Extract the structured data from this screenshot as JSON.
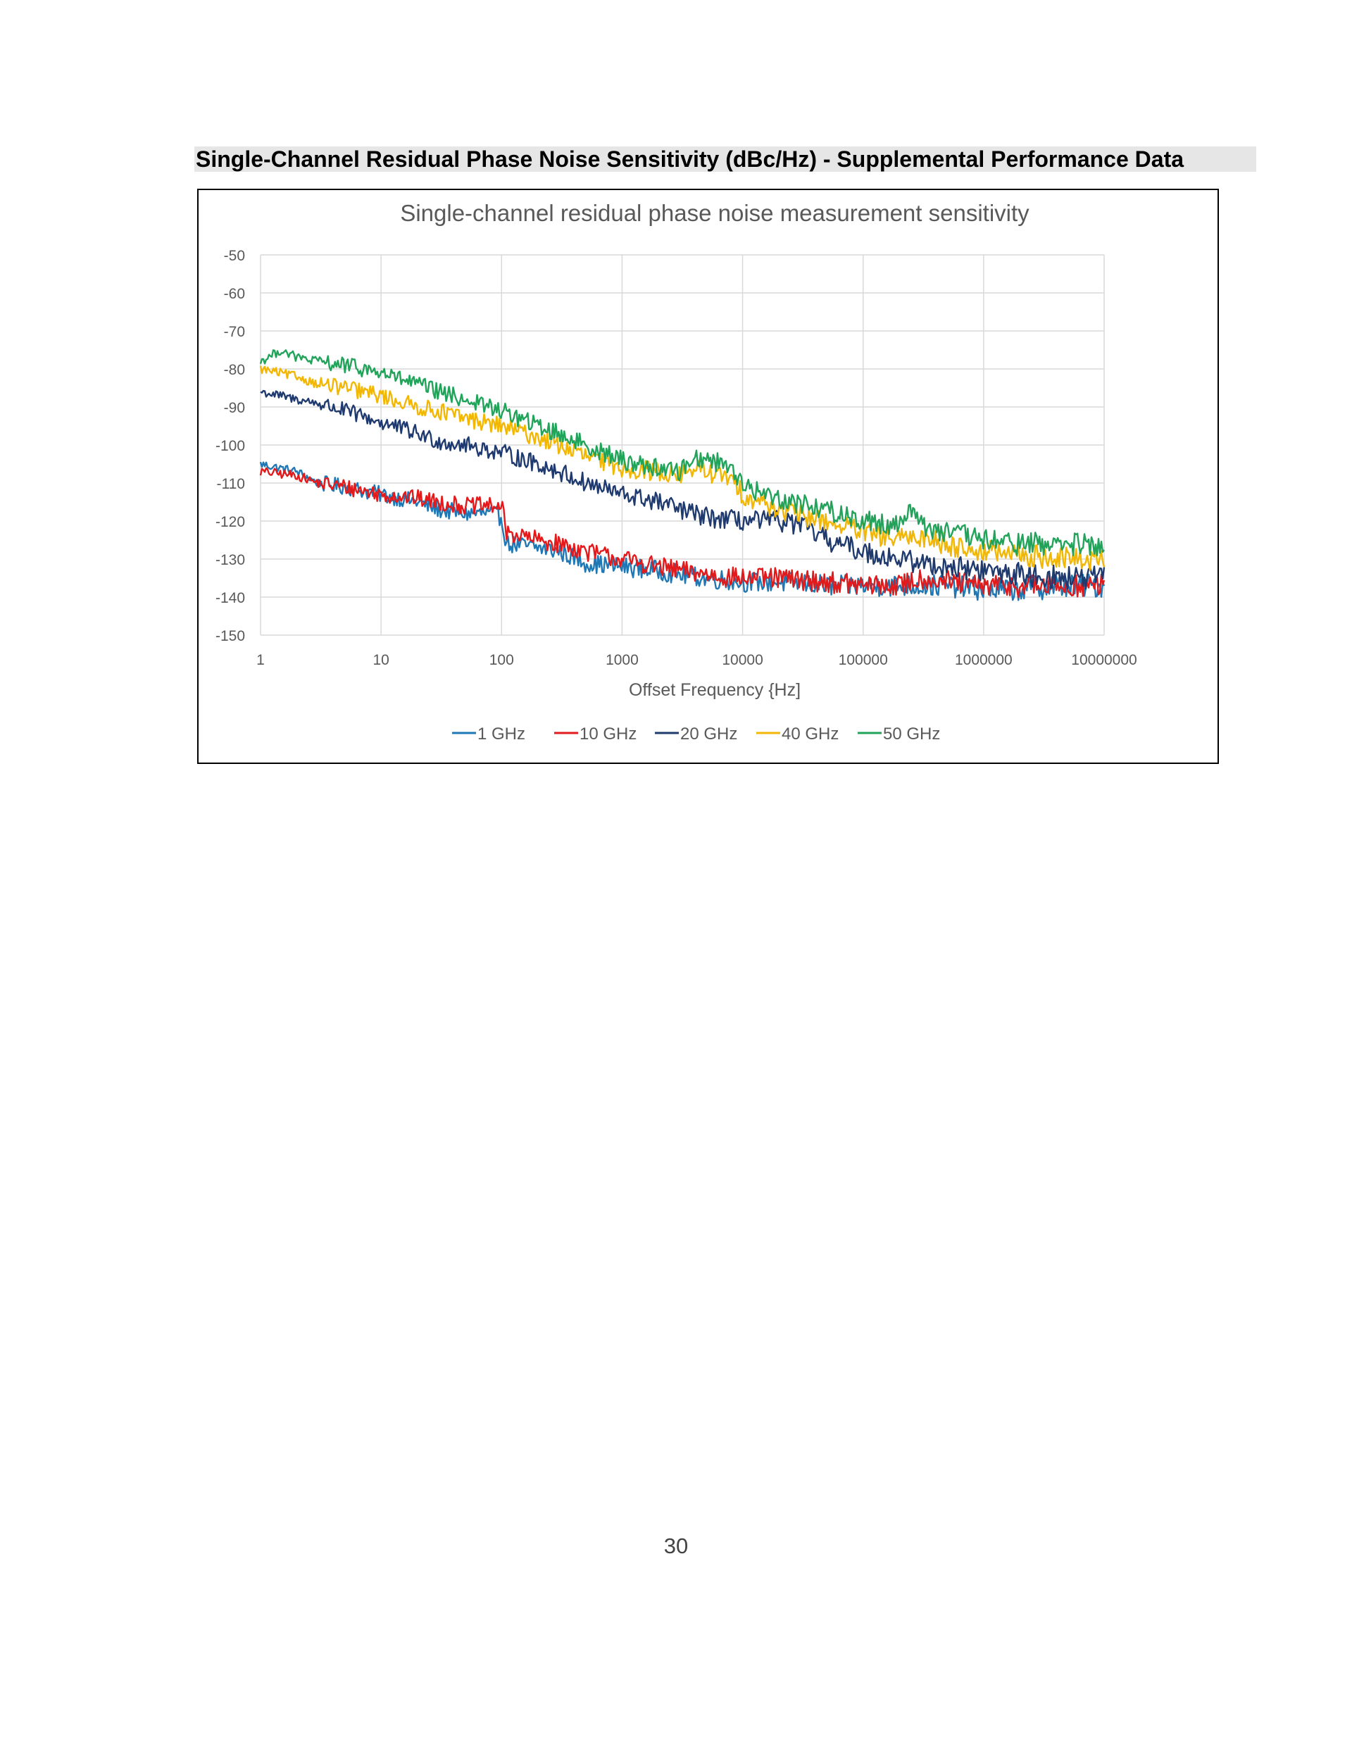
{
  "heading": "Single-Channel Residual Phase Noise Sensitivity (dBc/Hz) - Supplemental Performance Data",
  "page_number": "30",
  "chart_data": {
    "type": "line",
    "title": "Single-channel residual phase noise measurement sensitivity",
    "xlabel": "Offset Frequency {Hz]",
    "ylabel": "",
    "x_scale": "log",
    "xlim": [
      1,
      10000000
    ],
    "ylim": [
      -150,
      -50
    ],
    "x_ticks": [
      "1",
      "10",
      "100",
      "1000",
      "10000",
      "100000",
      "1000000",
      "10000000"
    ],
    "y_ticks": [
      "-50",
      "-60",
      "-70",
      "-80",
      "-90",
      "-100",
      "-110",
      "-120",
      "-130",
      "-140",
      "-150"
    ],
    "grid": true,
    "legend_position": "bottom",
    "series": [
      {
        "name": "1 GHz",
        "color": "#1f77b4",
        "x": [
          1,
          2,
          3,
          5,
          10,
          20,
          30,
          50,
          80,
          100,
          110,
          200,
          300,
          500,
          1000,
          2000,
          3000,
          5000,
          10000,
          20000,
          50000,
          100000,
          200000,
          500000,
          1000000,
          2000000,
          5000000,
          10000000
        ],
        "y": [
          -105,
          -107,
          -110,
          -111,
          -113,
          -115,
          -117,
          -118,
          -118,
          -119,
          -126,
          -127,
          -128,
          -131,
          -132,
          -133,
          -134,
          -135,
          -136,
          -136,
          -137,
          -137,
          -137,
          -137,
          -138,
          -138,
          -137,
          -137
        ]
      },
      {
        "name": "10 GHz",
        "color": "#e31a1c",
        "x": [
          1,
          2,
          3,
          5,
          10,
          20,
          30,
          50,
          80,
          100,
          110,
          200,
          300,
          500,
          1000,
          2000,
          3000,
          5000,
          10000,
          20000,
          50000,
          100000,
          200000,
          300000,
          500000,
          1000000,
          2000000,
          5000000,
          10000000
        ],
        "y": [
          -107,
          -108,
          -110,
          -111,
          -113,
          -114,
          -115,
          -116,
          -116,
          -116,
          -123,
          -125,
          -126,
          -128,
          -130,
          -132,
          -133,
          -134,
          -135,
          -135,
          -136,
          -137,
          -137,
          -135,
          -136,
          -137,
          -137,
          -137,
          -137
        ]
      },
      {
        "name": "20 GHz",
        "color": "#1f3a6e",
        "x": [
          1,
          2,
          3,
          5,
          10,
          20,
          30,
          50,
          100,
          200,
          300,
          500,
          1000,
          2000,
          3000,
          5000,
          10000,
          20000,
          30000,
          50000,
          100000,
          200000,
          300000,
          500000,
          1000000,
          2000000,
          5000000,
          10000000
        ],
        "y": [
          -86,
          -88,
          -89,
          -91,
          -94,
          -97,
          -99,
          -100,
          -102,
          -105,
          -107,
          -110,
          -113,
          -115,
          -117,
          -119,
          -120,
          -120,
          -121,
          -125,
          -128,
          -130,
          -131,
          -132,
          -133,
          -134,
          -135,
          -135
        ]
      },
      {
        "name": "40 GHz",
        "color": "#f2b705",
        "x": [
          1,
          2,
          3,
          5,
          10,
          20,
          30,
          50,
          100,
          200,
          300,
          500,
          1000,
          2000,
          3000,
          4000,
          5000,
          8000,
          10000,
          20000,
          50000,
          100000,
          200000,
          300000,
          500000,
          1000000,
          2000000,
          5000000,
          10000000
        ],
        "y": [
          -80,
          -82,
          -84,
          -85,
          -87,
          -90,
          -91,
          -93,
          -95,
          -98,
          -100,
          -103,
          -106,
          -107,
          -108,
          -106,
          -107,
          -109,
          -113,
          -117,
          -120,
          -123,
          -125,
          -124,
          -126,
          -128,
          -129,
          -130,
          -130
        ]
      },
      {
        "name": "50 GHz",
        "color": "#21a35a",
        "x": [
          1,
          1.5,
          2,
          3,
          5,
          10,
          20,
          30,
          50,
          100,
          200,
          300,
          500,
          1000,
          2000,
          3000,
          4000,
          5000,
          8000,
          10000,
          20000,
          50000,
          100000,
          200000,
          250000,
          300000,
          500000,
          1000000,
          2000000,
          5000000,
          10000000
        ],
        "y": [
          -78,
          -75,
          -77,
          -78,
          -79,
          -81,
          -84,
          -86,
          -88,
          -91,
          -95,
          -97,
          -100,
          -104,
          -106,
          -107,
          -103,
          -104,
          -105,
          -111,
          -114,
          -117,
          -120,
          -121,
          -116,
          -121,
          -123,
          -125,
          -126,
          -126,
          -127
        ]
      }
    ]
  }
}
